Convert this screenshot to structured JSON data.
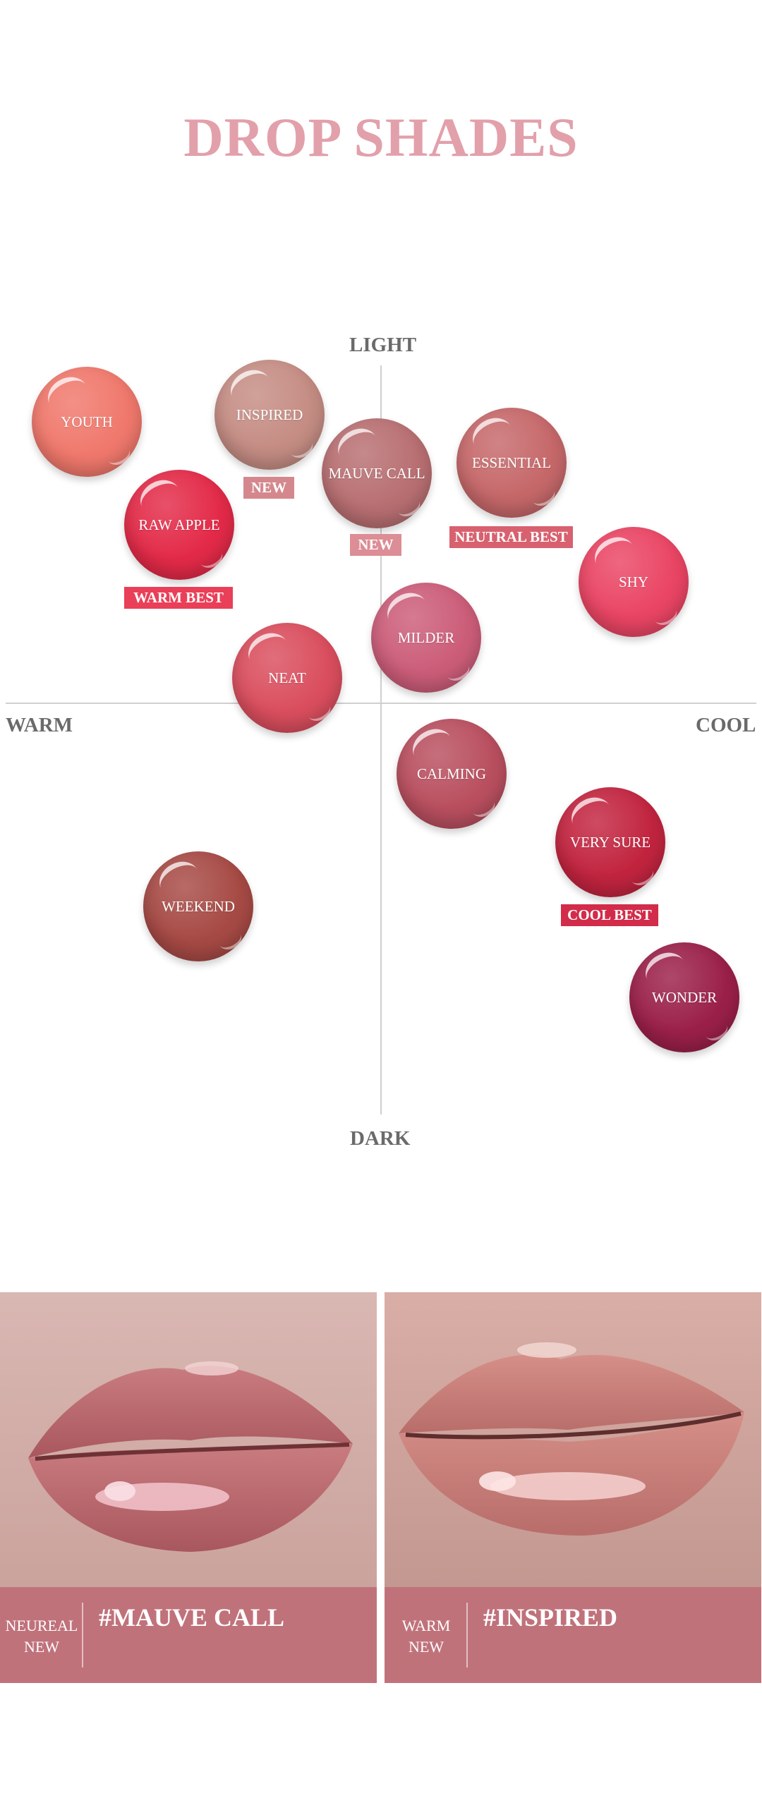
{
  "header": {
    "title": "DROP SHADES",
    "title_color": "#e2a0ab"
  },
  "axes": {
    "top": "LIGHT",
    "bottom": "DARK",
    "left": "WARM",
    "right": "COOL"
  },
  "shades": [
    {
      "name": "YOUTH",
      "color": "#f0786c"
    },
    {
      "name": "INSPIRED",
      "color": "#c58d84"
    },
    {
      "name": "MAUVE CALL",
      "color": "#b86f72",
      "badge": "NEW",
      "badge_color": "#dc8d95"
    },
    {
      "name": "ESSENTIAL",
      "color": "#c6686a",
      "badge": "NEUTRAL BEST",
      "badge_color": "#d8616f"
    },
    {
      "name": "RAW APPLE",
      "color": "#e32a48",
      "badge": "WARM BEST",
      "badge_color": "#ea3f58"
    },
    {
      "name": "SHY",
      "color": "#ea4564"
    },
    {
      "name": "MILDER",
      "color": "#cc5d79"
    },
    {
      "name": "NEAT",
      "color": "#da4e5e"
    },
    {
      "name": "CALMING",
      "color": "#b94f5f"
    },
    {
      "name": "VERY SURE",
      "color": "#c2243f",
      "badge": "COOL BEST",
      "badge_color": "#d22c4a"
    },
    {
      "name": "WEEKEND",
      "color": "#a74a45"
    },
    {
      "name": "WONDER",
      "color": "#9b2049"
    }
  ],
  "inspired_badge": {
    "text": "NEW",
    "color": "#d4888e"
  },
  "looks": [
    {
      "tone_line1": "NEUREAL",
      "tone_line2": "NEW",
      "name": "#MAUVE CALL",
      "caption_color": "#c0727b"
    },
    {
      "tone_line1": "WARM",
      "tone_line2": "NEW",
      "name": "#INSPIRED",
      "caption_color": "#c0727b"
    }
  ]
}
